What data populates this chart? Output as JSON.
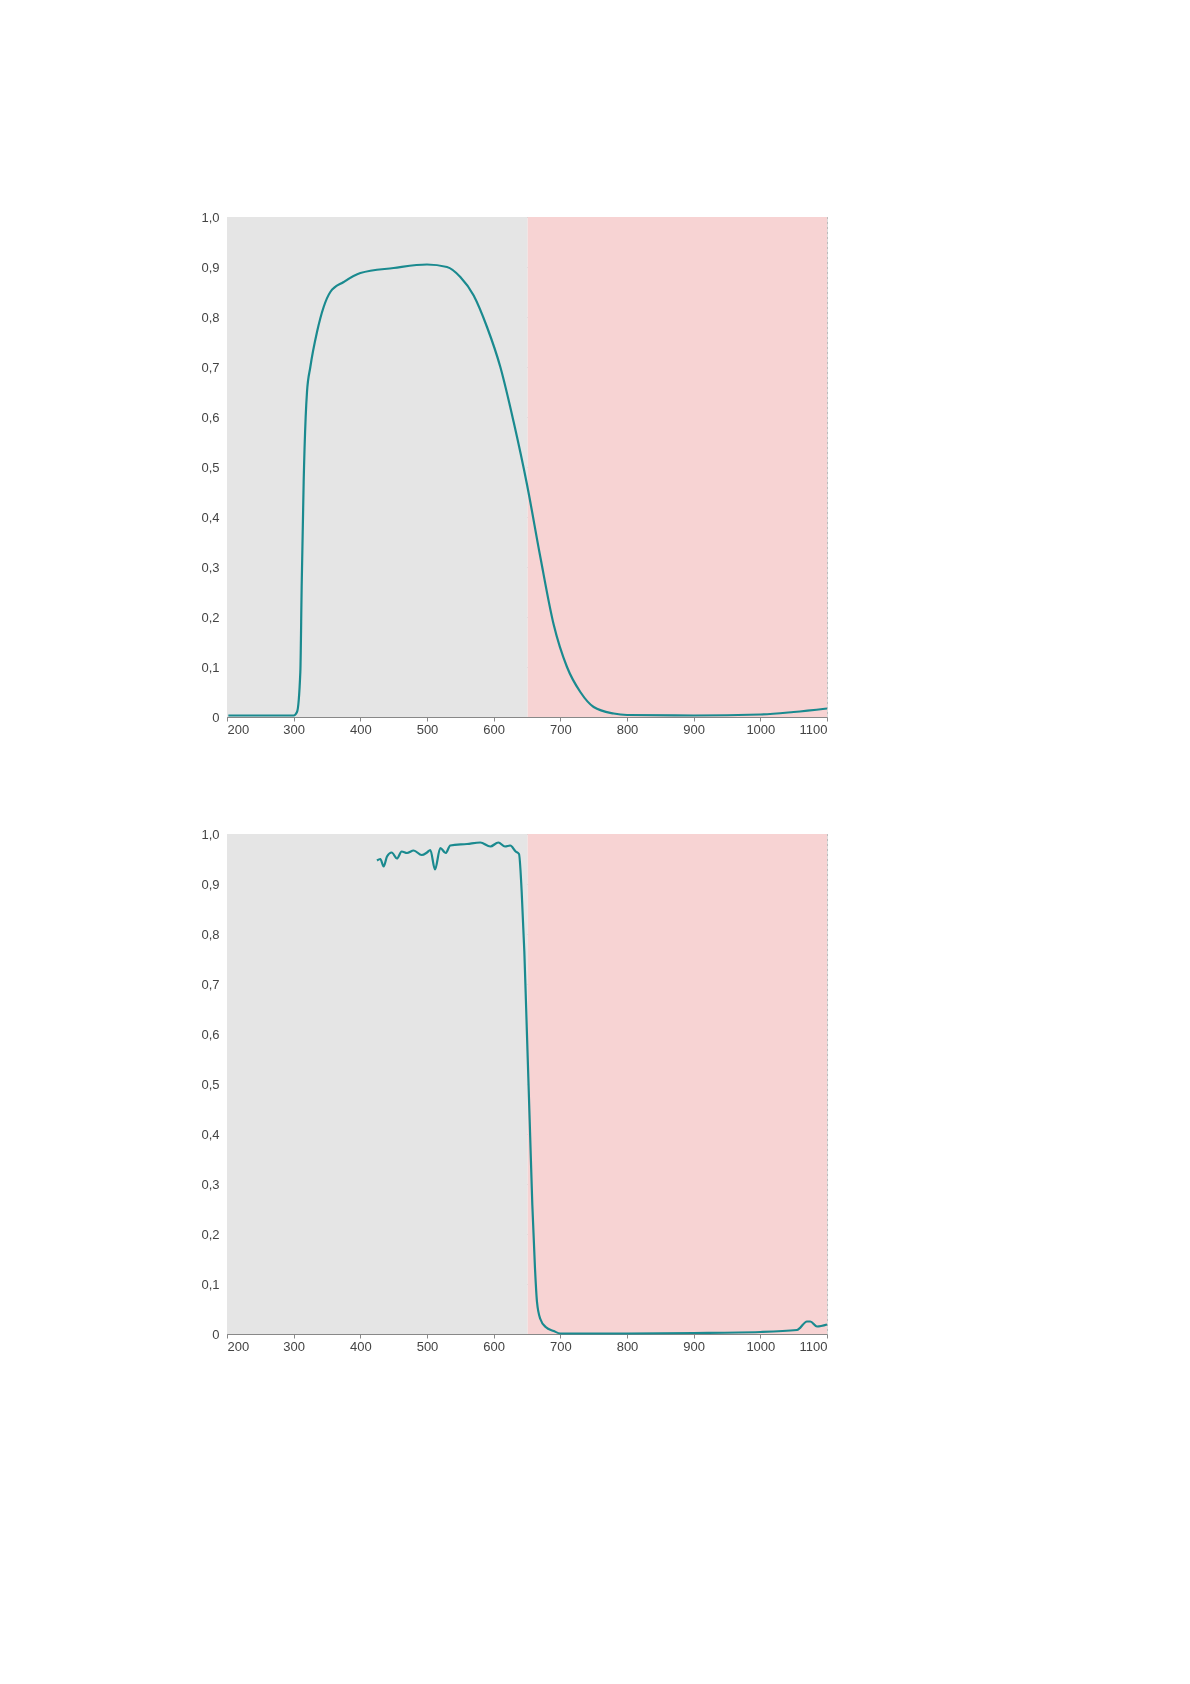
{
  "chart_data": [
    {
      "type": "line",
      "xlim": [
        200,
        1100
      ],
      "xticks": [
        200,
        300,
        400,
        500,
        600,
        700,
        800,
        900,
        1000,
        1100
      ],
      "ylim": [
        0,
        1.0
      ],
      "yticks": [
        0,
        {
          "value": 0.1,
          "label": "0,1"
        },
        {
          "value": 0.2,
          "label": "0,2"
        },
        {
          "value": 0.3,
          "label": "0,3"
        },
        {
          "value": 0.4,
          "label": "0,4"
        },
        {
          "value": 0.5,
          "label": "0,5"
        },
        {
          "value": 0.6,
          "label": "0,6"
        },
        {
          "value": 0.7,
          "label": "0,7"
        },
        {
          "value": 0.8,
          "label": "0,8"
        },
        {
          "value": 0.9,
          "label": "0,9"
        },
        {
          "value": 1.0,
          "label": "1,0"
        }
      ],
      "grid": true,
      "marker": "none",
      "line_style": "solid",
      "bands": [
        {
          "axis": "x",
          "from": 200,
          "to": 651,
          "color": "#e5e5e5"
        },
        {
          "axis": "x",
          "from": 651,
          "to": 1100,
          "color": "#f7d3d3"
        }
      ],
      "series": [
        {
          "color": "#1a8a8f",
          "x": [
            202,
            250,
            300,
            305,
            310,
            312,
            315,
            318,
            320,
            325,
            335,
            345,
            355,
            375,
            400,
            450,
            500,
            530,
            550,
            570,
            590,
            610,
            630,
            650,
            670,
            690,
            710,
            730,
            750,
            780,
            800,
            900,
            1000,
            1050,
            1100
          ],
          "values": [
            0.003,
            0.003,
            0.003,
            0.01,
            0.09,
            0.26,
            0.47,
            0.6,
            0.65,
            0.7,
            0.77,
            0.82,
            0.85,
            0.87,
            0.888,
            0.898,
            0.905,
            0.9,
            0.88,
            0.843,
            0.78,
            0.7,
            0.59,
            0.465,
            0.32,
            0.185,
            0.1,
            0.05,
            0.02,
            0.007,
            0.004,
            0.003,
            0.005,
            0.01,
            0.017
          ]
        }
      ]
    },
    {
      "type": "line",
      "xlim": [
        200,
        1100
      ],
      "xticks": [
        200,
        300,
        400,
        500,
        600,
        700,
        800,
        900,
        1000,
        1100
      ],
      "ylim": [
        0,
        1.0
      ],
      "yticks": [
        0,
        {
          "value": 0.1,
          "label": "0,1"
        },
        {
          "value": 0.2,
          "label": "0,2"
        },
        {
          "value": 0.3,
          "label": "0,3"
        },
        {
          "value": 0.4,
          "label": "0,4"
        },
        {
          "value": 0.5,
          "label": "0,5"
        },
        {
          "value": 0.6,
          "label": "0,6"
        },
        {
          "value": 0.7,
          "label": "0,7"
        },
        {
          "value": 0.8,
          "label": "0,8"
        },
        {
          "value": 0.9,
          "label": "0,9"
        },
        {
          "value": 1.0,
          "label": "1,0"
        }
      ],
      "grid": true,
      "marker": "none",
      "line_style": "solid",
      "bands": [
        {
          "axis": "x",
          "from": 200,
          "to": 651,
          "color": "#e5e5e5"
        },
        {
          "axis": "x",
          "from": 651,
          "to": 1100,
          "color": "#f7d3d3"
        }
      ],
      "series": [
        {
          "color": "#1a8a8f",
          "x": [
            425,
            430,
            435,
            440,
            447,
            455,
            462,
            470,
            480,
            492,
            500,
            505,
            512,
            520,
            528,
            535,
            560,
            580,
            595,
            607,
            617,
            625,
            633,
            638,
            642,
            646,
            650,
            654,
            658,
            662,
            665,
            670,
            678,
            690,
            700,
            800,
            900,
            1000,
            1055,
            1070,
            1075,
            1085,
            1100
          ],
          "values": [
            0.947,
            0.95,
            0.935,
            0.955,
            0.963,
            0.951,
            0.965,
            0.962,
            0.967,
            0.958,
            0.963,
            0.968,
            0.929,
            0.972,
            0.962,
            0.977,
            0.98,
            0.983,
            0.975,
            0.983,
            0.975,
            0.977,
            0.965,
            0.96,
            0.885,
            0.765,
            0.597,
            0.428,
            0.258,
            0.131,
            0.064,
            0.03,
            0.014,
            0.006,
            0.001,
            0.001,
            0.002,
            0.004,
            0.008,
            0.025,
            0.025,
            0.015,
            0.019
          ]
        }
      ]
    }
  ]
}
